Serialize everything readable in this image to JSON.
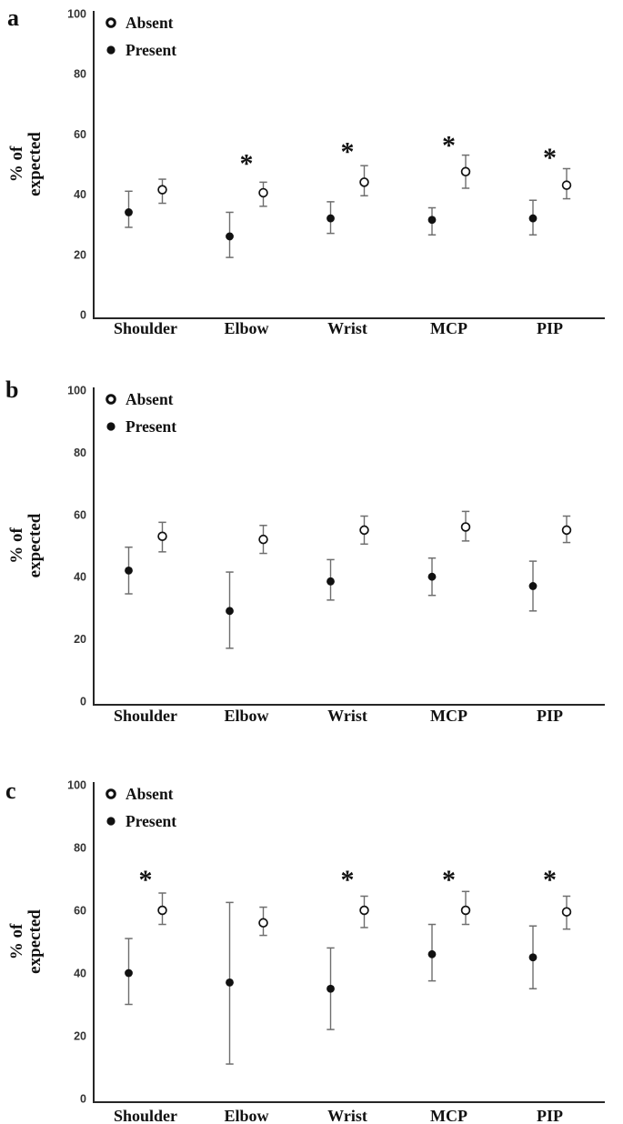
{
  "figure": {
    "background": "#ffffff",
    "n_panels": 3
  },
  "colors": {
    "marker_fill": "#111111",
    "open_marker_fill": "#ffffff",
    "marker_stroke": "#111111",
    "error_bar": "#6e6e6e",
    "axis_line": "#262626",
    "tick_text": "#333333",
    "label_text": "#111111"
  },
  "chart_data": [
    {
      "type": "scatter",
      "panel_label": "a",
      "ylabel": "% of expected",
      "ylabel_lines": [
        "% of",
        "expected"
      ],
      "ylim": [
        0,
        100
      ],
      "yticks": [
        0,
        20,
        40,
        60,
        80,
        100
      ],
      "grid": false,
      "legend_position": "top-left-inside",
      "categories": [
        "Shoulder",
        "Elbow",
        "Wrist",
        "MCP",
        "PIP"
      ],
      "legend": [
        {
          "name": "Absent",
          "marker": "open-circle"
        },
        {
          "name": "Present",
          "marker": "filled-circle"
        }
      ],
      "series": [
        {
          "name": "Absent",
          "marker": "open-circle",
          "values": [
            41.5,
            40.5,
            44.0,
            47.5,
            43.0
          ],
          "ci_low": [
            37.0,
            36.0,
            39.5,
            42.0,
            38.5
          ],
          "ci_high": [
            45.0,
            44.0,
            49.5,
            53.0,
            48.5
          ]
        },
        {
          "name": "Present",
          "marker": "filled-circle",
          "values": [
            34.0,
            26.0,
            32.0,
            31.5,
            32.0
          ],
          "ci_low": [
            29.0,
            19.0,
            27.0,
            26.5,
            26.5
          ],
          "ci_high": [
            41.0,
            34.0,
            37.5,
            35.5,
            38.0
          ]
        }
      ],
      "significance_marker": "*",
      "significance_y": [
        null,
        51.5,
        55.5,
        57.5,
        53.5
      ]
    },
    {
      "type": "scatter",
      "panel_label": "b",
      "ylabel": "% of expected",
      "ylabel_lines": [
        "% of",
        "expected"
      ],
      "ylim": [
        0,
        100
      ],
      "yticks": [
        0,
        20,
        40,
        60,
        80,
        100
      ],
      "grid": false,
      "legend_position": "top-left-inside",
      "categories": [
        "Shoulder",
        "Elbow",
        "Wrist",
        "MCP",
        "PIP"
      ],
      "legend": [
        {
          "name": "Absent",
          "marker": "open-circle"
        },
        {
          "name": "Present",
          "marker": "filled-circle"
        }
      ],
      "series": [
        {
          "name": "Absent",
          "marker": "open-circle",
          "values": [
            53.0,
            52.0,
            55.0,
            56.0,
            55.0
          ],
          "ci_low": [
            48.0,
            47.5,
            50.5,
            51.5,
            51.0
          ],
          "ci_high": [
            57.5,
            56.5,
            59.5,
            61.0,
            59.5
          ]
        },
        {
          "name": "Present",
          "marker": "filled-circle",
          "values": [
            42.0,
            29.0,
            38.5,
            40.0,
            37.0
          ],
          "ci_low": [
            34.5,
            17.0,
            32.5,
            34.0,
            29.0
          ],
          "ci_high": [
            49.5,
            41.5,
            45.5,
            46.0,
            45.0
          ]
        }
      ],
      "significance_marker": "*",
      "significance_y": [
        null,
        null,
        null,
        null,
        null
      ]
    },
    {
      "type": "scatter",
      "panel_label": "c",
      "ylabel": "% of expected",
      "ylabel_lines": [
        "% of",
        "expected"
      ],
      "ylim": [
        0,
        100
      ],
      "yticks": [
        0,
        20,
        40,
        60,
        80,
        100
      ],
      "grid": false,
      "legend_position": "top-left-inside",
      "categories": [
        "Shoulder",
        "Elbow",
        "Wrist",
        "MCP",
        "PIP"
      ],
      "legend": [
        {
          "name": "Absent",
          "marker": "open-circle"
        },
        {
          "name": "Present",
          "marker": "filled-circle"
        }
      ],
      "series": [
        {
          "name": "Absent",
          "marker": "open-circle",
          "values": [
            60.0,
            56.0,
            60.0,
            60.0,
            59.5
          ],
          "ci_low": [
            55.5,
            52.0,
            54.5,
            55.5,
            54.0
          ],
          "ci_high": [
            65.5,
            61.0,
            64.5,
            66.0,
            64.5
          ]
        },
        {
          "name": "Present",
          "marker": "filled-circle",
          "values": [
            40.0,
            37.0,
            35.0,
            46.0,
            45.0
          ],
          "ci_low": [
            30.0,
            11.0,
            22.0,
            37.5,
            35.0
          ],
          "ci_high": [
            51.0,
            62.5,
            48.0,
            55.5,
            55.0
          ]
        }
      ],
      "significance_marker": "*",
      "significance_y": [
        71,
        null,
        71,
        71,
        71
      ]
    }
  ]
}
